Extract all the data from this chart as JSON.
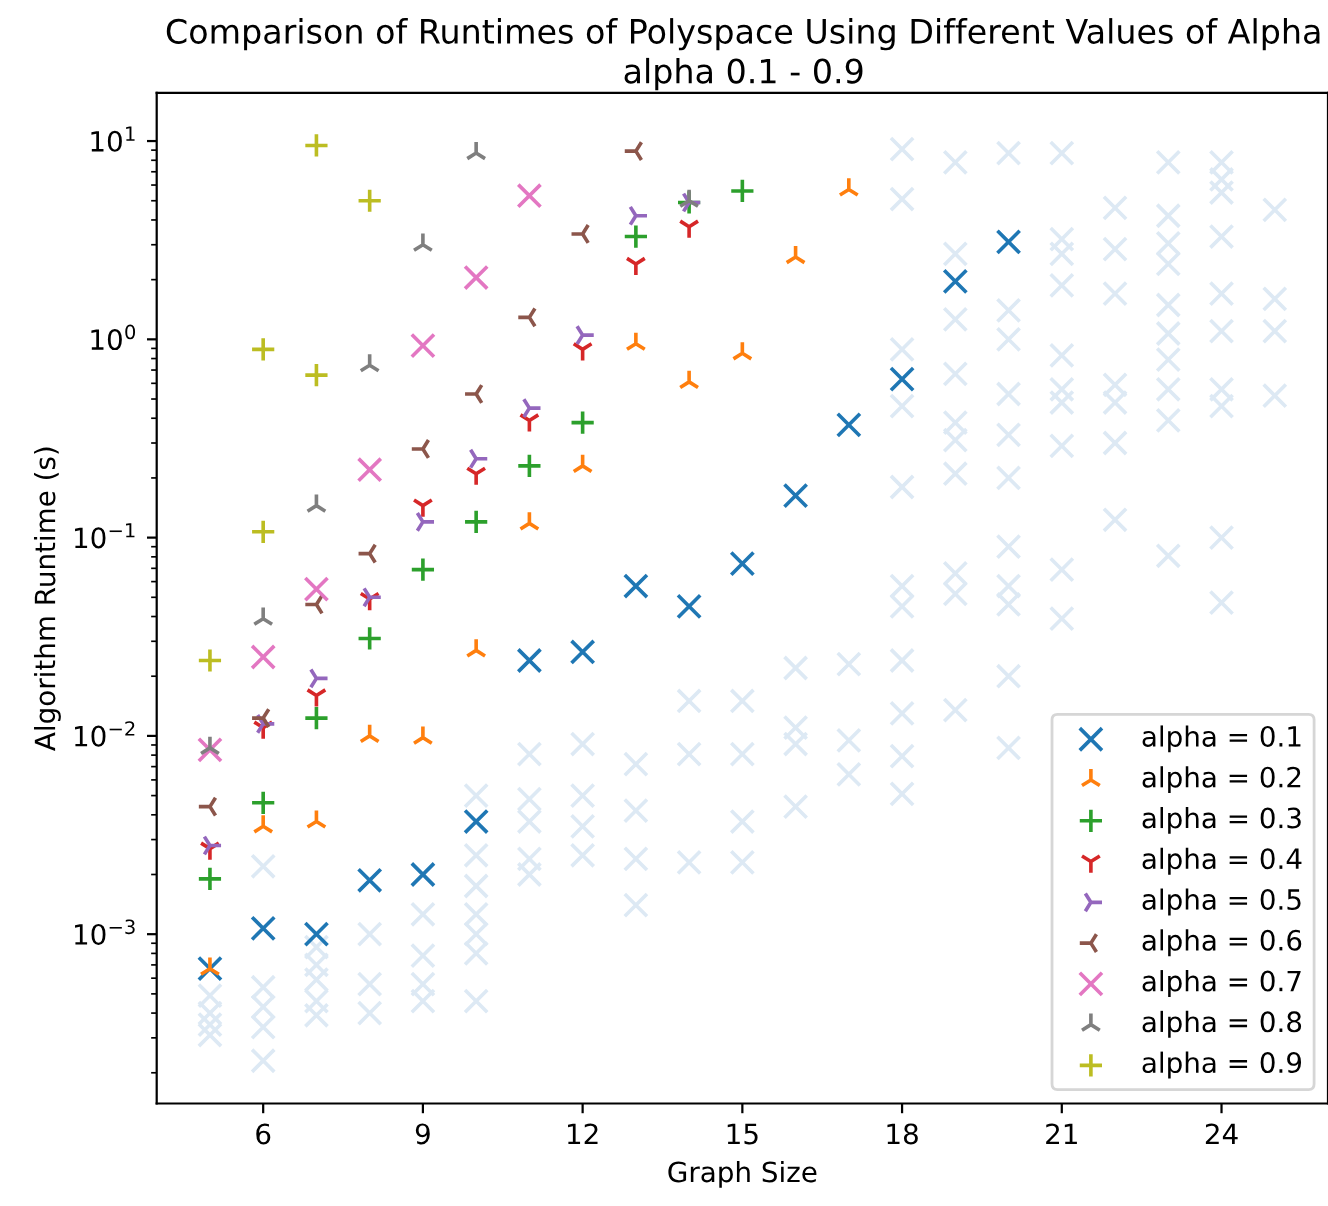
{
  "chart_data": {
    "type": "scatter",
    "title": "Comparison of Runtimes of Polyspace Using Different Values of Alpha",
    "subtitle": "alpha 0.1 - 0.9",
    "xlabel": "Graph Size",
    "ylabel": "Algorithm Runtime (s)",
    "log": "y",
    "xlim": [
      4,
      26
    ],
    "ylim": [
      0.00014,
      17.5
    ],
    "xticks": [
      6,
      9,
      12,
      15,
      18,
      21,
      24
    ],
    "yticks": [
      {
        "value": 0.001,
        "label": "10$^{−3}$"
      },
      {
        "value": 0.01,
        "label": "10$^{−2}$"
      },
      {
        "value": 0.1,
        "label": "10$^{−1}$"
      },
      {
        "value": 1,
        "label": "10$^{0}$"
      },
      {
        "value": 10,
        "label": "10$^{1}$"
      }
    ],
    "grid": false,
    "legend": "bottom right",
    "series": [
      {
        "color": "#dde9f4",
        "marker": "cross",
        "x": [
          5,
          5,
          5,
          5,
          6,
          6,
          6,
          6,
          6,
          7,
          7,
          7,
          7,
          7,
          8,
          8,
          8,
          9,
          9,
          9,
          9,
          10,
          10,
          10,
          10,
          10,
          10,
          10,
          11,
          11,
          11,
          11,
          11,
          12,
          12,
          12,
          12,
          13,
          13,
          13,
          13,
          14,
          14,
          14,
          15,
          15,
          15,
          15,
          16,
          16,
          16,
          16,
          17,
          17,
          17,
          18,
          18,
          18,
          18,
          18,
          18,
          18,
          18,
          18,
          18,
          18,
          19,
          19,
          19,
          19,
          19,
          19,
          19,
          19,
          19,
          19,
          20,
          20,
          20,
          20,
          20,
          20,
          20,
          20,
          20,
          20,
          20,
          21,
          21,
          21,
          21,
          21,
          21,
          21,
          21,
          21,
          21,
          22,
          22,
          22,
          22,
          22,
          22,
          22,
          23,
          23,
          23,
          23,
          23,
          23,
          23,
          23,
          23,
          23,
          24,
          24,
          24,
          24,
          24,
          24,
          24,
          24,
          24,
          24,
          25,
          25,
          25,
          25
        ],
        "values": [
          0.00049,
          0.0004,
          0.00035,
          0.00031,
          0.0022,
          0.00054,
          0.00043,
          0.00034,
          0.00023,
          0.00086,
          0.0007,
          0.00059,
          0.00046,
          0.00039,
          0.001,
          0.00056,
          0.0004,
          0.00126,
          0.00078,
          0.00056,
          0.00046,
          0.005,
          0.0025,
          0.00175,
          0.00126,
          0.001,
          0.0008,
          0.00046,
          0.0081,
          0.0048,
          0.0037,
          0.0024,
          0.002,
          0.0091,
          0.005,
          0.0035,
          0.0025,
          0.0072,
          0.0042,
          0.0024,
          0.0014,
          0.015,
          0.0081,
          0.0023,
          0.015,
          0.0081,
          0.0037,
          0.0023,
          0.022,
          0.011,
          0.0091,
          0.0044,
          0.023,
          0.0095,
          0.0064,
          9.1,
          5.1,
          0.89,
          0.46,
          0.18,
          0.057,
          0.045,
          0.024,
          0.013,
          0.0079,
          0.0051,
          7.8,
          2.7,
          1.26,
          0.67,
          0.38,
          0.31,
          0.21,
          0.066,
          0.052,
          0.0135,
          8.7,
          1.4,
          1.0,
          0.53,
          0.33,
          0.2,
          0.09,
          0.057,
          0.046,
          0.02,
          0.0087,
          8.7,
          3.2,
          2.7,
          1.87,
          0.83,
          0.56,
          0.48,
          0.29,
          0.069,
          0.039,
          4.6,
          2.85,
          1.7,
          0.59,
          0.48,
          0.3,
          0.123,
          7.8,
          4.2,
          3.05,
          2.4,
          1.49,
          1.07,
          0.79,
          0.56,
          0.39,
          0.081,
          7.8,
          6.4,
          5.5,
          3.3,
          1.7,
          1.1,
          0.56,
          0.46,
          0.1,
          0.047,
          4.5,
          1.6,
          1.1,
          0.52
        ]
      },
      {
        "name": "alpha = 0.1",
        "color": "#1f77b4",
        "marker": "cross",
        "x": [
          5,
          6,
          7,
          8,
          9,
          10,
          11,
          12,
          13,
          14,
          15,
          16,
          17,
          18,
          19,
          20
        ],
        "values": [
          0.00067,
          0.00107,
          0.001,
          0.00187,
          0.002,
          0.0037,
          0.024,
          0.0265,
          0.057,
          0.045,
          0.074,
          0.163,
          0.37,
          0.63,
          1.96,
          3.1
        ]
      },
      {
        "name": "alpha = 0.2",
        "color": "#ff7f0e",
        "marker": "cross",
        "x": [
          5,
          6,
          7,
          8,
          9,
          10,
          11,
          12,
          13,
          14,
          15,
          16,
          17
        ],
        "values": [
          0.00067,
          0.0035,
          0.0037,
          0.01,
          0.0098,
          0.027,
          0.118,
          0.23,
          0.95,
          0.61,
          0.85,
          2.6,
          5.7
        ]
      },
      {
        "name": "alpha = 0.3",
        "color": "#2ca02c",
        "marker": "cross",
        "x": [
          5,
          6,
          7,
          8,
          9,
          10,
          11,
          12,
          13,
          14,
          15
        ],
        "values": [
          0.0019,
          0.0046,
          0.0123,
          0.031,
          0.069,
          0.12,
          0.23,
          0.38,
          3.3,
          4.9,
          5.6
        ]
      },
      {
        "name": "alpha = 0.4",
        "color": "#d62728",
        "marker": "cross",
        "x": [
          5,
          6,
          7,
          8,
          9,
          10,
          11,
          12,
          13,
          14
        ],
        "values": [
          0.0027,
          0.011,
          0.016,
          0.049,
          0.145,
          0.21,
          0.39,
          0.89,
          2.4,
          3.7
        ]
      },
      {
        "name": "alpha = 0.5",
        "color": "#9467bd",
        "marker": "cross",
        "x": [
          5,
          6,
          7,
          8,
          9,
          10,
          11,
          12,
          13,
          14
        ],
        "values": [
          0.0028,
          0.0115,
          0.0195,
          0.05,
          0.12,
          0.25,
          0.45,
          1.05,
          4.2,
          4.9
        ]
      },
      {
        "name": "alpha = 0.6",
        "color": "#8c564b",
        "marker": "cross",
        "x": [
          5,
          6,
          7,
          8,
          9,
          10,
          11,
          12,
          13
        ],
        "values": [
          0.0044,
          0.0123,
          0.046,
          0.083,
          0.28,
          0.53,
          1.29,
          3.4,
          8.9
        ]
      },
      {
        "name": "alpha = 0.7",
        "color": "#e377c2",
        "marker": "cross",
        "x": [
          5,
          6,
          7,
          8,
          9,
          10,
          11
        ],
        "values": [
          0.0085,
          0.025,
          0.055,
          0.22,
          0.93,
          2.05,
          5.3
        ]
      },
      {
        "name": "alpha = 0.8",
        "color": "#7f7f7f",
        "marker": "cross",
        "x": [
          5,
          6,
          7,
          8,
          9,
          10,
          14
        ],
        "values": [
          0.0087,
          0.039,
          0.145,
          0.74,
          3.0,
          8.7,
          5.0
        ]
      },
      {
        "name": "alpha = 0.9",
        "color": "#bcbd22",
        "marker": "cross",
        "x": [
          5,
          6,
          6,
          7,
          7,
          8
        ],
        "values": [
          0.024,
          0.107,
          0.89,
          0.66,
          9.5,
          5.0
        ]
      }
    ]
  }
}
